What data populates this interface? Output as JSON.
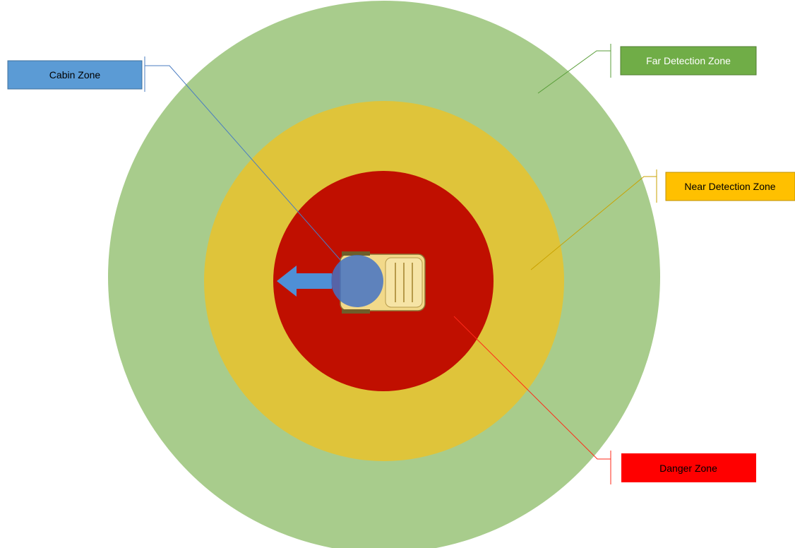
{
  "zones": {
    "far": {
      "label": "Far Detection Zone",
      "color": "#a8cc8c",
      "box_color": "#70ad47",
      "text_color": "#ffffff"
    },
    "near": {
      "label": "Near Detection Zone",
      "color": "#dfc43a",
      "box_color": "#ffc000",
      "text_color": "#000000"
    },
    "danger": {
      "label": "Danger Zone",
      "color": "#c00f00",
      "box_color": "#ff0000",
      "text_color": "#000000"
    },
    "cabin": {
      "label": "Cabin Zone",
      "color": "#4472c4",
      "box_color": "#5b9bd5",
      "text_color": "#000000"
    }
  },
  "vehicle": {
    "icon": "truck-top-view-icon",
    "color": "#f2d98a"
  },
  "direction": {
    "icon": "arrow-left-icon",
    "color": "#4f8fd6"
  }
}
